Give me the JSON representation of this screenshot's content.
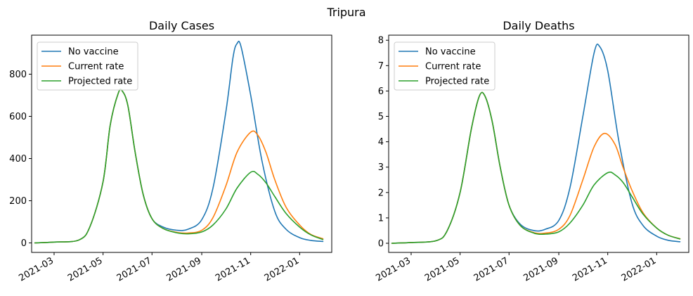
{
  "figure": {
    "suptitle": "Tripura"
  },
  "chart_data": [
    {
      "type": "line",
      "title": "Daily Cases",
      "xlabel": "",
      "ylabel": "",
      "xlim": [
        "2021-02-01",
        "2022-02-10"
      ],
      "ylim": [
        -45,
        985
      ],
      "x_ticks": [
        "2021-03",
        "2021-05",
        "2021-07",
        "2021-09",
        "2021-11",
        "2022-01"
      ],
      "y_ticks": [
        0,
        200,
        400,
        600,
        800
      ],
      "legend_position": "upper-left",
      "grid": false,
      "series": [
        {
          "name": "No vaccine",
          "color": "#1f77b4",
          "points": [
            [
              "2021-02-05",
              0
            ],
            [
              "2021-03-01",
              4
            ],
            [
              "2021-04-01",
              14
            ],
            [
              "2021-04-15",
              80
            ],
            [
              "2021-05-01",
              290
            ],
            [
              "2021-05-10",
              560
            ],
            [
              "2021-05-20",
              710
            ],
            [
              "2021-05-25",
              720
            ],
            [
              "2021-06-01",
              650
            ],
            [
              "2021-06-10",
              430
            ],
            [
              "2021-06-20",
              230
            ],
            [
              "2021-07-01",
              115
            ],
            [
              "2021-07-15",
              75
            ],
            [
              "2021-08-01",
              60
            ],
            [
              "2021-08-15",
              65
            ],
            [
              "2021-09-01",
              110
            ],
            [
              "2021-09-15",
              260
            ],
            [
              "2021-10-01",
              620
            ],
            [
              "2021-10-10",
              880
            ],
            [
              "2021-10-15",
              945
            ],
            [
              "2021-10-20",
              930
            ],
            [
              "2021-11-01",
              700
            ],
            [
              "2021-11-15",
              390
            ],
            [
              "2021-12-01",
              150
            ],
            [
              "2021-12-15",
              65
            ],
            [
              "2022-01-01",
              25
            ],
            [
              "2022-01-15",
              12
            ],
            [
              "2022-01-30",
              7
            ]
          ]
        },
        {
          "name": "Current rate",
          "color": "#ff7f0e",
          "points": [
            [
              "2021-02-05",
              0
            ],
            [
              "2021-03-01",
              4
            ],
            [
              "2021-04-01",
              14
            ],
            [
              "2021-04-15",
              80
            ],
            [
              "2021-05-01",
              290
            ],
            [
              "2021-05-10",
              560
            ],
            [
              "2021-05-20",
              710
            ],
            [
              "2021-05-25",
              720
            ],
            [
              "2021-06-01",
              650
            ],
            [
              "2021-06-10",
              430
            ],
            [
              "2021-06-20",
              230
            ],
            [
              "2021-07-01",
              115
            ],
            [
              "2021-07-15",
              68
            ],
            [
              "2021-08-01",
              50
            ],
            [
              "2021-08-15",
              47
            ],
            [
              "2021-09-01",
              60
            ],
            [
              "2021-09-15",
              120
            ],
            [
              "2021-10-01",
              270
            ],
            [
              "2021-10-15",
              430
            ],
            [
              "2021-11-01",
              525
            ],
            [
              "2021-11-10",
              510
            ],
            [
              "2021-11-20",
              430
            ],
            [
              "2021-12-01",
              300
            ],
            [
              "2021-12-15",
              170
            ],
            [
              "2022-01-01",
              85
            ],
            [
              "2022-01-15",
              40
            ],
            [
              "2022-01-30",
              20
            ]
          ]
        },
        {
          "name": "Projected rate",
          "color": "#2ca02c",
          "points": [
            [
              "2021-02-05",
              0
            ],
            [
              "2021-03-01",
              4
            ],
            [
              "2021-04-01",
              14
            ],
            [
              "2021-04-15",
              80
            ],
            [
              "2021-05-01",
              290
            ],
            [
              "2021-05-10",
              560
            ],
            [
              "2021-05-20",
              710
            ],
            [
              "2021-05-25",
              720
            ],
            [
              "2021-06-01",
              650
            ],
            [
              "2021-06-10",
              430
            ],
            [
              "2021-06-20",
              230
            ],
            [
              "2021-07-01",
              115
            ],
            [
              "2021-07-15",
              68
            ],
            [
              "2021-08-01",
              48
            ],
            [
              "2021-08-15",
              43
            ],
            [
              "2021-09-01",
              52
            ],
            [
              "2021-09-15",
              85
            ],
            [
              "2021-10-01",
              160
            ],
            [
              "2021-10-15",
              260
            ],
            [
              "2021-11-01",
              335
            ],
            [
              "2021-11-10",
              325
            ],
            [
              "2021-11-20",
              285
            ],
            [
              "2021-12-01",
              220
            ],
            [
              "2021-12-15",
              140
            ],
            [
              "2022-01-01",
              75
            ],
            [
              "2022-01-15",
              38
            ],
            [
              "2022-01-30",
              16
            ]
          ]
        }
      ]
    },
    {
      "type": "line",
      "title": "Daily Deaths",
      "xlabel": "",
      "ylabel": "",
      "xlim": [
        "2021-02-01",
        "2022-02-10"
      ],
      "ylim": [
        -0.36,
        8.2
      ],
      "x_ticks": [
        "2021-03",
        "2021-05",
        "2021-07",
        "2021-09",
        "2021-11",
        "2022-01"
      ],
      "y_ticks": [
        0,
        1,
        2,
        3,
        4,
        5,
        6,
        7,
        8
      ],
      "legend_position": "upper-left",
      "grid": false,
      "series": [
        {
          "name": "No vaccine",
          "color": "#1f77b4",
          "points": [
            [
              "2021-02-05",
              0
            ],
            [
              "2021-03-01",
              0.03
            ],
            [
              "2021-04-01",
              0.1
            ],
            [
              "2021-04-15",
              0.5
            ],
            [
              "2021-05-01",
              2.0
            ],
            [
              "2021-05-15",
              4.5
            ],
            [
              "2021-05-25",
              5.8
            ],
            [
              "2021-06-01",
              5.8
            ],
            [
              "2021-06-10",
              4.8
            ],
            [
              "2021-06-20",
              3.0
            ],
            [
              "2021-07-01",
              1.5
            ],
            [
              "2021-07-15",
              0.75
            ],
            [
              "2021-08-01",
              0.5
            ],
            [
              "2021-08-15",
              0.55
            ],
            [
              "2021-09-01",
              0.9
            ],
            [
              "2021-09-15",
              2.2
            ],
            [
              "2021-10-01",
              5.0
            ],
            [
              "2021-10-15",
              7.5
            ],
            [
              "2021-10-22",
              7.75
            ],
            [
              "2021-11-01",
              6.8
            ],
            [
              "2021-11-15",
              4.0
            ],
            [
              "2021-12-01",
              1.6
            ],
            [
              "2021-12-15",
              0.7
            ],
            [
              "2022-01-01",
              0.28
            ],
            [
              "2022-01-15",
              0.12
            ],
            [
              "2022-01-30",
              0.06
            ]
          ]
        },
        {
          "name": "Current rate",
          "color": "#ff7f0e",
          "points": [
            [
              "2021-02-05",
              0
            ],
            [
              "2021-03-01",
              0.03
            ],
            [
              "2021-04-01",
              0.1
            ],
            [
              "2021-04-15",
              0.5
            ],
            [
              "2021-05-01",
              2.0
            ],
            [
              "2021-05-15",
              4.5
            ],
            [
              "2021-05-25",
              5.8
            ],
            [
              "2021-06-01",
              5.8
            ],
            [
              "2021-06-10",
              4.8
            ],
            [
              "2021-06-20",
              3.0
            ],
            [
              "2021-07-01",
              1.5
            ],
            [
              "2021-07-15",
              0.7
            ],
            [
              "2021-08-01",
              0.42
            ],
            [
              "2021-08-15",
              0.4
            ],
            [
              "2021-09-01",
              0.55
            ],
            [
              "2021-09-15",
              1.1
            ],
            [
              "2021-10-01",
              2.5
            ],
            [
              "2021-10-15",
              3.8
            ],
            [
              "2021-10-28",
              4.33
            ],
            [
              "2021-11-10",
              3.9
            ],
            [
              "2021-11-20",
              3.0
            ],
            [
              "2021-12-01",
              2.1
            ],
            [
              "2021-12-15",
              1.2
            ],
            [
              "2022-01-01",
              0.6
            ],
            [
              "2022-01-15",
              0.32
            ],
            [
              "2022-01-30",
              0.18
            ]
          ]
        },
        {
          "name": "Projected rate",
          "color": "#2ca02c",
          "points": [
            [
              "2021-02-05",
              0
            ],
            [
              "2021-03-01",
              0.03
            ],
            [
              "2021-04-01",
              0.1
            ],
            [
              "2021-04-15",
              0.5
            ],
            [
              "2021-05-01",
              2.0
            ],
            [
              "2021-05-15",
              4.5
            ],
            [
              "2021-05-25",
              5.8
            ],
            [
              "2021-06-01",
              5.8
            ],
            [
              "2021-06-10",
              4.8
            ],
            [
              "2021-06-20",
              3.0
            ],
            [
              "2021-07-01",
              1.5
            ],
            [
              "2021-07-15",
              0.7
            ],
            [
              "2021-08-01",
              0.4
            ],
            [
              "2021-08-15",
              0.36
            ],
            [
              "2021-09-01",
              0.45
            ],
            [
              "2021-09-15",
              0.8
            ],
            [
              "2021-10-01",
              1.5
            ],
            [
              "2021-10-15",
              2.3
            ],
            [
              "2021-11-01",
              2.78
            ],
            [
              "2021-11-10",
              2.7
            ],
            [
              "2021-11-20",
              2.4
            ],
            [
              "2021-12-01",
              1.85
            ],
            [
              "2021-12-15",
              1.15
            ],
            [
              "2022-01-01",
              0.6
            ],
            [
              "2022-01-15",
              0.32
            ],
            [
              "2022-01-30",
              0.17
            ]
          ]
        }
      ]
    }
  ]
}
